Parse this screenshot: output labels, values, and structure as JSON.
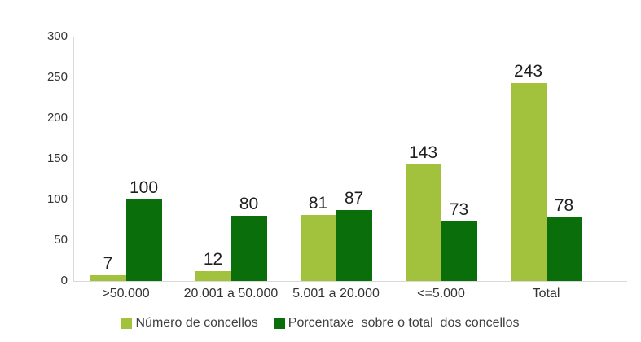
{
  "chart_data": {
    "type": "bar",
    "title": "",
    "xlabel": "",
    "ylabel": "",
    "categories": [
      ">50.000",
      "20.001 a 50.000",
      "5.001 a 20.000",
      "<=5.000",
      "Total"
    ],
    "series": [
      {
        "name": "Número de concellos",
        "color": "#A2C13D",
        "values": [
          7,
          12,
          81,
          143,
          243
        ]
      },
      {
        "name": "Porcentaxe  sobre o total  dos concellos",
        "color": "#0A6E0A",
        "values": [
          100,
          80,
          87,
          73,
          78
        ]
      }
    ],
    "ylim": [
      0,
      300
    ],
    "yticks": [
      0,
      50,
      100,
      150,
      200,
      250,
      300
    ],
    "grid": false,
    "legend_position": "bottom",
    "axis_line_color": "#D9D9D9",
    "tick_label_color": "#333333",
    "data_label_color": "#1F1F1F",
    "legend_text_color": "#3F3F3F",
    "background_color": "#FFFFFF"
  }
}
